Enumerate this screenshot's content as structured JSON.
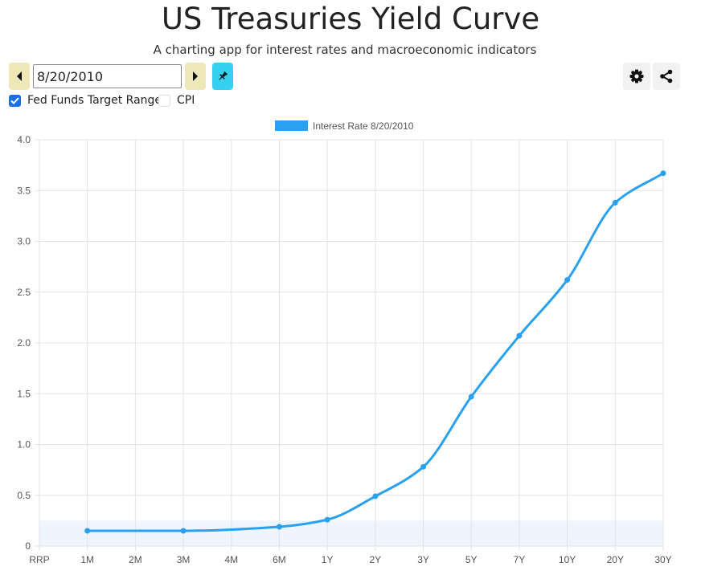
{
  "header": {
    "title": "US Treasuries Yield Curve",
    "subtitle": "A charting app for interest rates and macroeconomic indicators"
  },
  "controls": {
    "date_value": "8/20/2010",
    "prev_icon": "caret-left-icon",
    "next_icon": "caret-right-icon",
    "pin_icon": "pin-icon",
    "settings_icon": "gear-icon",
    "share_icon": "share-icon",
    "checkboxes": [
      {
        "label": "Fed Funds Target Range",
        "checked": true
      },
      {
        "label": "CPI",
        "checked": false
      }
    ]
  },
  "colors": {
    "line": "#2aa1f0",
    "band": "#eef5fe",
    "nav_button": "#eee8b8",
    "pin_button": "#36d1f0",
    "checkbox": "#1a6ee6"
  },
  "chart_data": {
    "type": "line",
    "categories": [
      "RRP",
      "1M",
      "2M",
      "3M",
      "4M",
      "6M",
      "1Y",
      "2Y",
      "3Y",
      "5Y",
      "7Y",
      "10Y",
      "20Y",
      "30Y"
    ],
    "series": [
      {
        "name": "Interest Rate 8/20/2010",
        "values": [
          null,
          0.15,
          null,
          0.15,
          null,
          0.19,
          0.26,
          0.49,
          0.78,
          1.47,
          2.07,
          2.62,
          3.38,
          3.67
        ]
      }
    ],
    "fed_funds_target_range": [
      0,
      0.25
    ],
    "ylim": [
      0,
      4.0
    ],
    "yticks": [
      "0",
      "0.5",
      "1.0",
      "1.5",
      "2.0",
      "2.5",
      "3.0",
      "3.5",
      "4.0"
    ],
    "grid": true,
    "legend_position": "top-center"
  }
}
